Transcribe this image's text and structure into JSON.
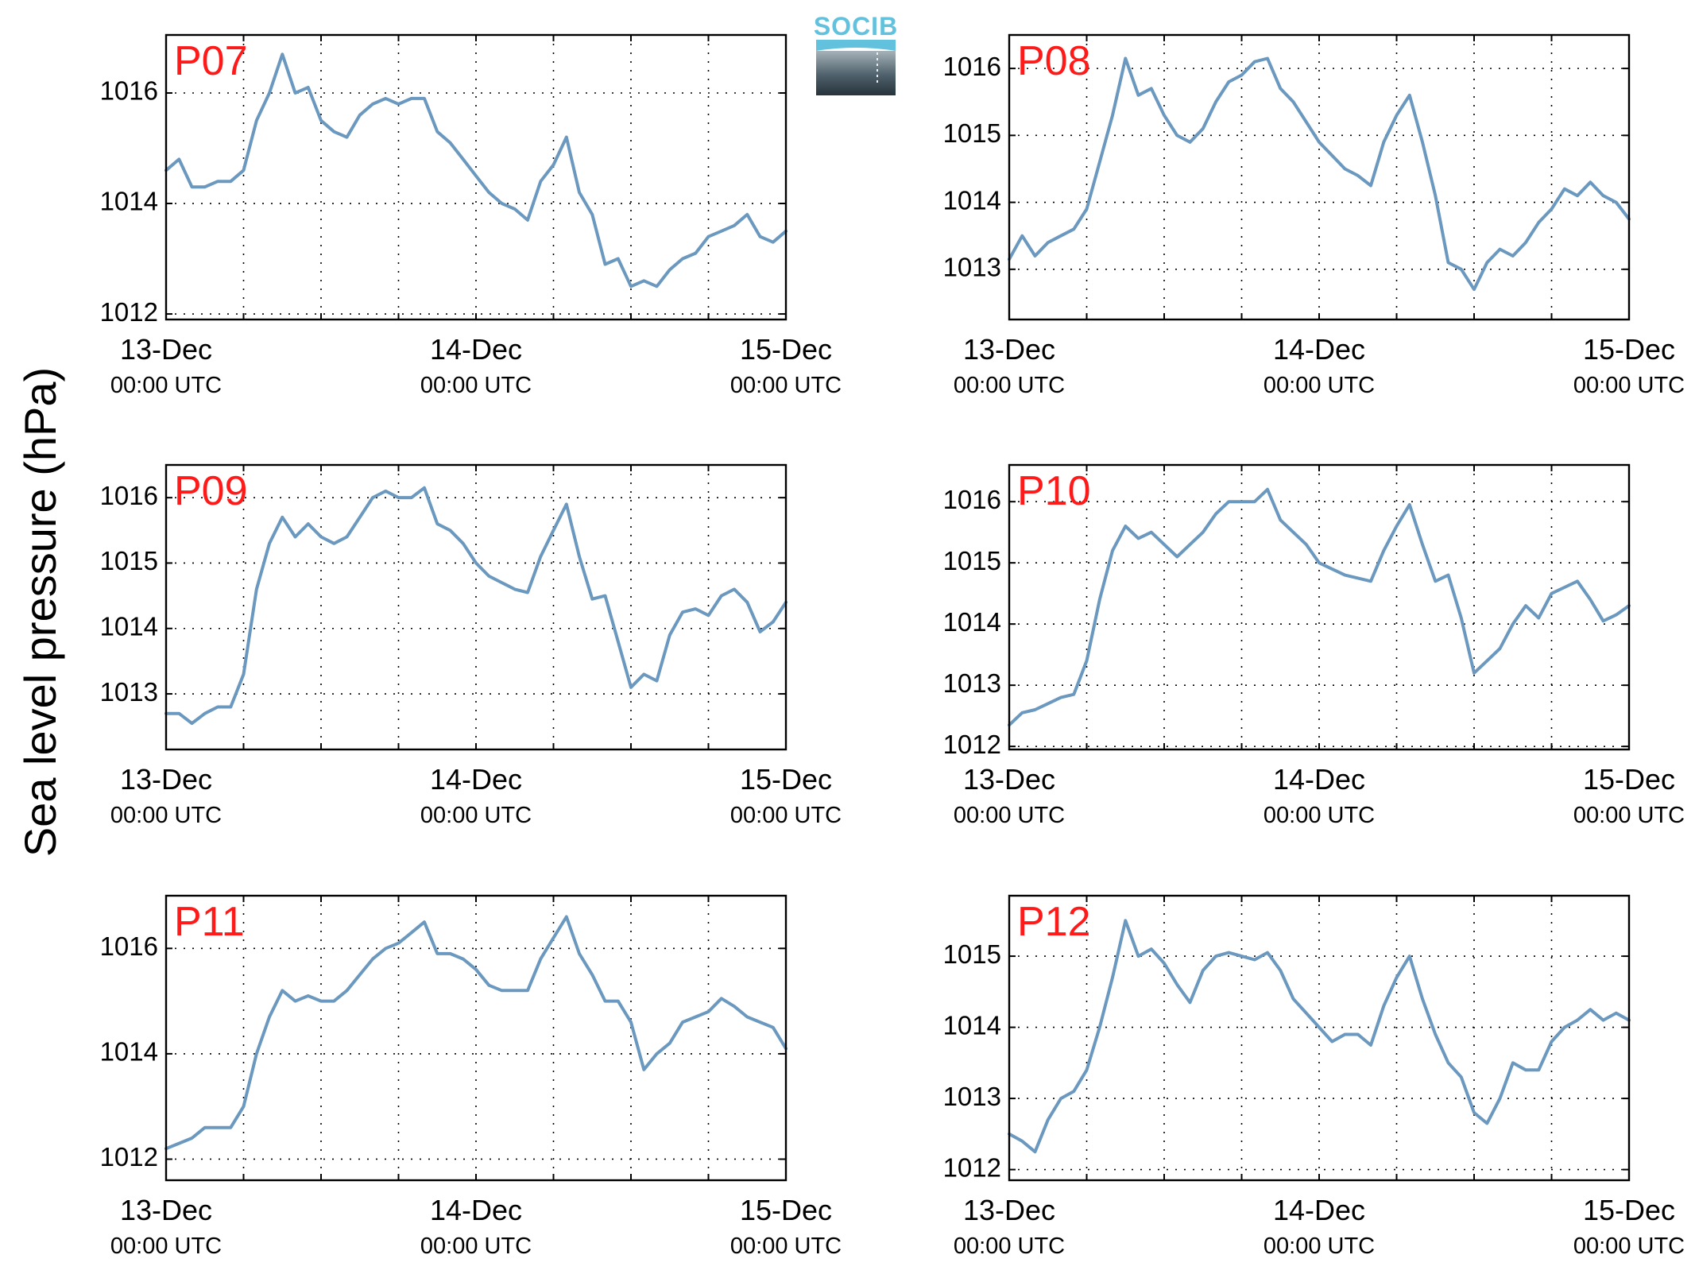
{
  "figure": {
    "ylabel": "Sea level pressure (hPa)",
    "logo_text": "SOCIB",
    "line_color": "#6b98bf",
    "panel_label_color": "#ff1a1a",
    "x_tick_labels": [
      {
        "date": "13-Dec",
        "time": "00:00 UTC"
      },
      {
        "date": "14-Dec",
        "time": "00:00 UTC"
      },
      {
        "date": "15-Dec",
        "time": "00:00 UTC"
      }
    ],
    "grid": "dotted"
  },
  "chart_data": [
    {
      "type": "line",
      "title": "P07",
      "xlabel": "",
      "ylabel": "Sea level pressure (hPa)",
      "x_unit": "hours since 13-Dec 00:00 UTC",
      "xlim": [
        0,
        48
      ],
      "ylim": [
        1011.9,
        1017.05
      ],
      "yticks": [
        1012,
        1014,
        1016
      ],
      "x": [
        0,
        1,
        2,
        3,
        4,
        5,
        6,
        7,
        8,
        9,
        10,
        11,
        12,
        13,
        14,
        15,
        16,
        17,
        18,
        19,
        20,
        21,
        22,
        23,
        24,
        25,
        26,
        27,
        28,
        29,
        30,
        31,
        32,
        33,
        34,
        35,
        36,
        37,
        38,
        39,
        40,
        41,
        42,
        43,
        44,
        45,
        46,
        47,
        48
      ],
      "values": [
        1014.6,
        1014.8,
        1014.3,
        1014.3,
        1014.4,
        1014.4,
        1014.6,
        1015.5,
        1016.0,
        1016.7,
        1016.0,
        1016.1,
        1015.5,
        1015.3,
        1015.2,
        1015.6,
        1015.8,
        1015.9,
        1015.8,
        1015.9,
        1015.9,
        1015.3,
        1015.1,
        1014.8,
        1014.5,
        1014.2,
        1014.0,
        1013.9,
        1013.7,
        1014.4,
        1014.7,
        1015.2,
        1014.2,
        1013.8,
        1012.9,
        1013.0,
        1012.5,
        1012.6,
        1012.5,
        1012.8,
        1013.0,
        1013.1,
        1013.4,
        1013.5,
        1013.6,
        1013.8,
        1013.4,
        1013.3,
        1013.5
      ]
    },
    {
      "type": "line",
      "title": "P08",
      "xlabel": "",
      "ylabel": "Sea level pressure (hPa)",
      "x_unit": "hours since 13-Dec 00:00 UTC",
      "xlim": [
        0,
        48
      ],
      "ylim": [
        1012.25,
        1016.5
      ],
      "yticks": [
        1013,
        1014,
        1015,
        1016
      ],
      "x": [
        0,
        1,
        2,
        3,
        4,
        5,
        6,
        7,
        8,
        9,
        10,
        11,
        12,
        13,
        14,
        15,
        16,
        17,
        18,
        19,
        20,
        21,
        22,
        23,
        24,
        25,
        26,
        27,
        28,
        29,
        30,
        31,
        32,
        33,
        34,
        35,
        36,
        37,
        38,
        39,
        40,
        41,
        42,
        43,
        44,
        45,
        46,
        47,
        48
      ],
      "values": [
        1013.15,
        1013.5,
        1013.2,
        1013.4,
        1013.5,
        1013.6,
        1013.9,
        1014.6,
        1015.3,
        1016.15,
        1015.6,
        1015.7,
        1015.3,
        1015.0,
        1014.9,
        1015.1,
        1015.5,
        1015.8,
        1015.9,
        1016.1,
        1016.15,
        1015.7,
        1015.5,
        1015.2,
        1014.9,
        1014.7,
        1014.5,
        1014.4,
        1014.25,
        1014.9,
        1015.3,
        1015.6,
        1014.9,
        1014.1,
        1013.1,
        1013.0,
        1012.7,
        1013.1,
        1013.3,
        1013.2,
        1013.4,
        1013.7,
        1013.9,
        1014.2,
        1014.1,
        1014.3,
        1014.1,
        1014.0,
        1013.75
      ]
    },
    {
      "type": "line",
      "title": "P09",
      "xlabel": "",
      "ylabel": "Sea level pressure (hPa)",
      "x_unit": "hours since 13-Dec 00:00 UTC",
      "xlim": [
        0,
        48
      ],
      "ylim": [
        1012.15,
        1016.5
      ],
      "yticks": [
        1013,
        1014,
        1015,
        1016
      ],
      "x": [
        0,
        1,
        2,
        3,
        4,
        5,
        6,
        7,
        8,
        9,
        10,
        11,
        12,
        13,
        14,
        15,
        16,
        17,
        18,
        19,
        20,
        21,
        22,
        23,
        24,
        25,
        26,
        27,
        28,
        29,
        30,
        31,
        32,
        33,
        34,
        35,
        36,
        37,
        38,
        39,
        40,
        41,
        42,
        43,
        44,
        45,
        46,
        47,
        48
      ],
      "values": [
        1012.7,
        1012.7,
        1012.55,
        1012.7,
        1012.8,
        1012.8,
        1013.3,
        1014.6,
        1015.3,
        1015.7,
        1015.4,
        1015.6,
        1015.4,
        1015.3,
        1015.4,
        1015.7,
        1016.0,
        1016.1,
        1016.0,
        1016.0,
        1016.15,
        1015.6,
        1015.5,
        1015.3,
        1015.0,
        1014.8,
        1014.7,
        1014.6,
        1014.55,
        1015.1,
        1015.5,
        1015.9,
        1015.1,
        1014.45,
        1014.5,
        1013.8,
        1013.1,
        1013.3,
        1013.2,
        1013.9,
        1014.25,
        1014.3,
        1014.2,
        1014.5,
        1014.6,
        1014.4,
        1013.95,
        1014.1,
        1014.4
      ]
    },
    {
      "type": "line",
      "title": "P10",
      "xlabel": "",
      "ylabel": "Sea level pressure (hPa)",
      "x_unit": "hours since 13-Dec 00:00 UTC",
      "xlim": [
        0,
        48
      ],
      "ylim": [
        1011.95,
        1016.6
      ],
      "yticks": [
        1012,
        1013,
        1014,
        1015,
        1016
      ],
      "x": [
        0,
        1,
        2,
        3,
        4,
        5,
        6,
        7,
        8,
        9,
        10,
        11,
        12,
        13,
        14,
        15,
        16,
        17,
        18,
        19,
        20,
        21,
        22,
        23,
        24,
        25,
        26,
        27,
        28,
        29,
        30,
        31,
        32,
        33,
        34,
        35,
        36,
        37,
        38,
        39,
        40,
        41,
        42,
        43,
        44,
        45,
        46,
        47,
        48
      ],
      "values": [
        1012.35,
        1012.55,
        1012.6,
        1012.7,
        1012.8,
        1012.85,
        1013.4,
        1014.4,
        1015.2,
        1015.6,
        1015.4,
        1015.5,
        1015.3,
        1015.1,
        1015.3,
        1015.5,
        1015.8,
        1016.0,
        1016.0,
        1016.0,
        1016.2,
        1015.7,
        1015.5,
        1015.3,
        1015.0,
        1014.9,
        1014.8,
        1014.75,
        1014.7,
        1015.2,
        1015.6,
        1015.95,
        1015.3,
        1014.7,
        1014.8,
        1014.1,
        1013.2,
        1013.4,
        1013.6,
        1014.0,
        1014.3,
        1014.1,
        1014.5,
        1014.6,
        1014.7,
        1014.4,
        1014.05,
        1014.15,
        1014.3
      ]
    },
    {
      "type": "line",
      "title": "P11",
      "xlabel": "",
      "ylabel": "Sea level pressure (hPa)",
      "x_unit": "hours since 13-Dec 00:00 UTC",
      "xlim": [
        0,
        48
      ],
      "ylim": [
        1011.6,
        1017.0
      ],
      "yticks": [
        1012,
        1014,
        1016
      ],
      "x": [
        0,
        1,
        2,
        3,
        4,
        5,
        6,
        7,
        8,
        9,
        10,
        11,
        12,
        13,
        14,
        15,
        16,
        17,
        18,
        19,
        20,
        21,
        22,
        23,
        24,
        25,
        26,
        27,
        28,
        29,
        30,
        31,
        32,
        33,
        34,
        35,
        36,
        37,
        38,
        39,
        40,
        41,
        42,
        43,
        44,
        45,
        46,
        47,
        48
      ],
      "values": [
        1012.2,
        1012.3,
        1012.4,
        1012.6,
        1012.6,
        1012.6,
        1013.0,
        1014.0,
        1014.7,
        1015.2,
        1015.0,
        1015.1,
        1015.0,
        1015.0,
        1015.2,
        1015.5,
        1015.8,
        1016.0,
        1016.1,
        1016.3,
        1016.5,
        1015.9,
        1015.9,
        1015.8,
        1015.6,
        1015.3,
        1015.2,
        1015.2,
        1015.2,
        1015.8,
        1016.2,
        1016.6,
        1015.9,
        1015.5,
        1015.0,
        1015.0,
        1014.6,
        1013.7,
        1014.0,
        1014.2,
        1014.6,
        1014.7,
        1014.8,
        1015.05,
        1014.9,
        1014.7,
        1014.6,
        1014.5,
        1014.1
      ]
    },
    {
      "type": "line",
      "title": "P12",
      "xlabel": "",
      "ylabel": "Sea level pressure (hPa)",
      "x_unit": "hours since 13-Dec 00:00 UTC",
      "xlim": [
        0,
        48
      ],
      "ylim": [
        1011.85,
        1015.85
      ],
      "yticks": [
        1012,
        1013,
        1014,
        1015
      ],
      "x": [
        0,
        1,
        2,
        3,
        4,
        5,
        6,
        7,
        8,
        9,
        10,
        11,
        12,
        13,
        14,
        15,
        16,
        17,
        18,
        19,
        20,
        21,
        22,
        23,
        24,
        25,
        26,
        27,
        28,
        29,
        30,
        31,
        32,
        33,
        34,
        35,
        36,
        37,
        38,
        39,
        40,
        41,
        42,
        43,
        44,
        45,
        46,
        47,
        48
      ],
      "values": [
        1012.5,
        1012.4,
        1012.25,
        1012.7,
        1013.0,
        1013.1,
        1013.4,
        1014.0,
        1014.7,
        1015.5,
        1015.0,
        1015.1,
        1014.9,
        1014.6,
        1014.35,
        1014.8,
        1015.0,
        1015.05,
        1015.0,
        1014.95,
        1015.05,
        1014.8,
        1014.4,
        1014.2,
        1014.0,
        1013.8,
        1013.9,
        1013.9,
        1013.75,
        1014.3,
        1014.7,
        1015.0,
        1014.4,
        1013.9,
        1013.5,
        1013.3,
        1012.8,
        1012.65,
        1013.0,
        1013.5,
        1013.4,
        1013.4,
        1013.8,
        1014.0,
        1014.1,
        1014.25,
        1014.1,
        1014.2,
        1014.1
      ]
    }
  ]
}
